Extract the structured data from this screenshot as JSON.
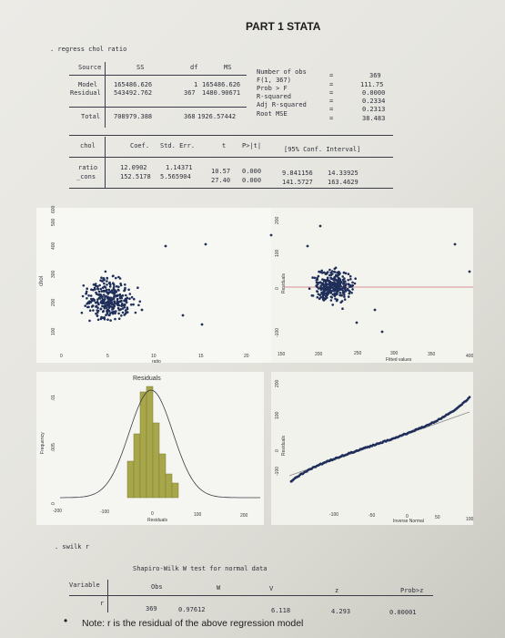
{
  "page_title": "PART 1 STATA",
  "cmd_regress": ". regress chol ratio",
  "anova": {
    "headers": [
      "Source",
      "SS",
      "df",
      "MS"
    ],
    "rows": [
      {
        "source": "Model",
        "ss": "165486.626",
        "df": "1",
        "ms": "165486.626"
      },
      {
        "source": "Residual",
        "ss": "543492.762",
        "df": "367",
        "ms": "1480.90671"
      },
      {
        "source": "Total",
        "ss": "708979.388",
        "df": "368",
        "ms": "1926.57442"
      }
    ]
  },
  "fit_stats": [
    {
      "label": "Number of obs",
      "eq": "=",
      "value": "369"
    },
    {
      "label": "F(1, 367)",
      "eq": "=",
      "value": "111.75"
    },
    {
      "label": "Prob > F",
      "eq": "=",
      "value": "0.0000"
    },
    {
      "label": "R-squared",
      "eq": "=",
      "value": "0.2334"
    },
    {
      "label": "Adj R-squared",
      "eq": "=",
      "value": "0.2313"
    },
    {
      "label": "Root MSE",
      "eq": "=",
      "value": "38.483"
    }
  ],
  "coef_table": {
    "depvar": "chol",
    "headers": [
      "Coef.",
      "Std. Err.",
      "t",
      "P>|t|",
      "[95% Conf. Interval]"
    ],
    "rows": [
      {
        "name": "ratio",
        "coef": "12.0902",
        "se": "1.14371",
        "t": "10.57",
        "p": "0.000",
        "lo": "9.841156",
        "hi": "14.33925"
      },
      {
        "name": "_cons",
        "coef": "152.5178",
        "se": "5.565904",
        "t": "27.40",
        "p": "0.000",
        "lo": "141.5727",
        "hi": "163.4629"
      }
    ]
  },
  "plots": {
    "scatter": {
      "ylabel": "chol",
      "xlabel": "ratio",
      "yticks": [
        "100",
        "200",
        "300",
        "400",
        "500",
        "600"
      ],
      "xticks": [
        "0",
        "5",
        "10",
        "15",
        "20"
      ]
    },
    "resfit": {
      "ylabel": "Residuals",
      "xlabel": "Fitted values",
      "yticks": [
        "-100",
        "0",
        "100",
        "200"
      ],
      "xticks": [
        "150",
        "200",
        "250",
        "300",
        "350",
        "400"
      ]
    },
    "hist": {
      "title": "Residuals",
      "ylabel": "Frequency",
      "xlabel": "Residuals",
      "yticks": [
        "0",
        ".005",
        ".01"
      ],
      "xticks": [
        "-200",
        "-100",
        "0",
        "100",
        "200"
      ]
    },
    "qq": {
      "ylabel": "Residuals",
      "xlabel": "Inverse Normal",
      "yticks": [
        "-100",
        "0",
        "100",
        "200"
      ],
      "xticks": [
        "-100",
        "-50",
        "0",
        "50",
        "100"
      ]
    }
  },
  "cmd_swilk": ". swilk r",
  "swilk": {
    "title": "Shapiro-Wilk W test for normal data",
    "headers": [
      "Variable",
      "Obs",
      "W",
      "V",
      "z",
      "Prob>z"
    ],
    "row": {
      "var": "r",
      "obs": "369",
      "w": "0.97612",
      "v": "6.118",
      "z": "4.293",
      "p": "0.00001"
    }
  },
  "note": "Note: r is the residual of the above regression model"
}
